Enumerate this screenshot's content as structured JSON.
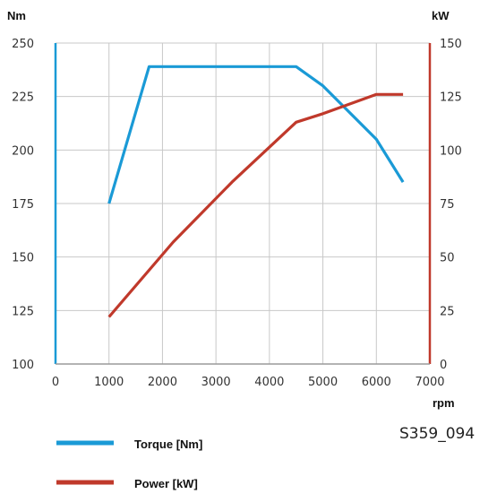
{
  "chart_data": {
    "type": "line",
    "x": [],
    "xlabel": "rpm",
    "xlim": [
      0,
      7000
    ],
    "xticks": [
      0,
      1000,
      2000,
      3000,
      4000,
      5000,
      6000,
      7000
    ],
    "y_left": {
      "label": "Nm",
      "lim": [
        100,
        250
      ],
      "ticks": [
        100,
        125,
        150,
        175,
        200,
        225,
        250
      ],
      "color": "#1a9ad6"
    },
    "y_right": {
      "label": "kW",
      "lim": [
        0,
        150
      ],
      "ticks": [
        0,
        25,
        50,
        75,
        100,
        125,
        150
      ],
      "color": "#c0392b"
    },
    "grid": true,
    "series": [
      {
        "name": "Torque [Nm]",
        "axis": "left",
        "color": "#1a9ad6",
        "points": [
          [
            1000,
            175
          ],
          [
            1750,
            239
          ],
          [
            4500,
            239
          ],
          [
            5000,
            230
          ],
          [
            6000,
            205
          ],
          [
            6500,
            185
          ]
        ]
      },
      {
        "name": "Power [kW]",
        "axis": "right",
        "color": "#c0392b",
        "points": [
          [
            1000,
            22
          ],
          [
            2200,
            57
          ],
          [
            3300,
            85
          ],
          [
            4500,
            113
          ],
          [
            5000,
            117
          ],
          [
            6000,
            126
          ],
          [
            6500,
            126
          ]
        ]
      }
    ],
    "legend_position": "bottom-left"
  },
  "figure_id": "S359_094"
}
